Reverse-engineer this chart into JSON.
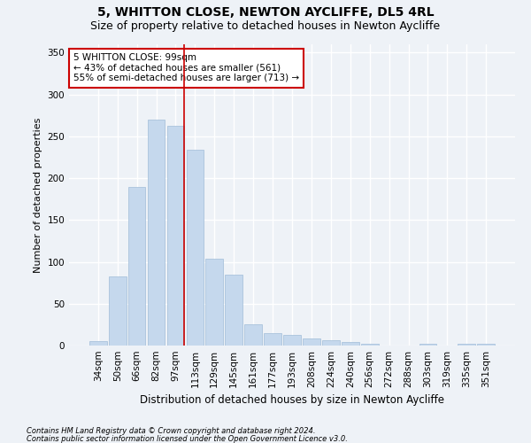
{
  "title": "5, WHITTON CLOSE, NEWTON AYCLIFFE, DL5 4RL",
  "subtitle": "Size of property relative to detached houses in Newton Aycliffe",
  "xlabel": "Distribution of detached houses by size in Newton Aycliffe",
  "ylabel": "Number of detached properties",
  "footnote1": "Contains HM Land Registry data © Crown copyright and database right 2024.",
  "footnote2": "Contains public sector information licensed under the Open Government Licence v3.0.",
  "categories": [
    "34sqm",
    "50sqm",
    "66sqm",
    "82sqm",
    "97sqm",
    "113sqm",
    "129sqm",
    "145sqm",
    "161sqm",
    "177sqm",
    "193sqm",
    "208sqm",
    "224sqm",
    "240sqm",
    "256sqm",
    "272sqm",
    "288sqm",
    "303sqm",
    "319sqm",
    "335sqm",
    "351sqm"
  ],
  "values": [
    5,
    83,
    190,
    270,
    263,
    234,
    104,
    85,
    25,
    15,
    13,
    9,
    6,
    4,
    2,
    0,
    0,
    2,
    0,
    2,
    2
  ],
  "bar_color": "#c5d8ed",
  "bar_edge_color": "#a0bcd8",
  "vline_color": "#cc0000",
  "vline_x_index": 4,
  "annotation_text": "5 WHITTON CLOSE: 99sqm\n← 43% of detached houses are smaller (561)\n55% of semi-detached houses are larger (713) →",
  "annotation_box_color": "white",
  "annotation_box_edgecolor": "#cc0000",
  "ylim": [
    0,
    360
  ],
  "yticks": [
    0,
    50,
    100,
    150,
    200,
    250,
    300,
    350
  ],
  "bg_color": "#eef2f7",
  "grid_color": "white",
  "title_fontsize": 10,
  "subtitle_fontsize": 9,
  "xlabel_fontsize": 8.5,
  "ylabel_fontsize": 8,
  "tick_fontsize": 7.5,
  "annot_fontsize": 7.5,
  "footnote_fontsize": 6
}
